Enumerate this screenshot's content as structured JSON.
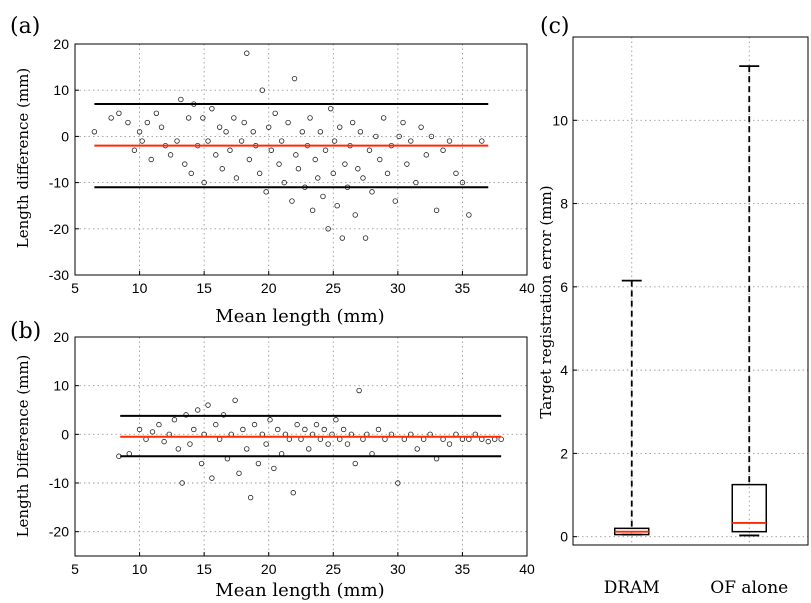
{
  "panels": {
    "a": {
      "label": "(a)"
    },
    "b": {
      "label": "(b)"
    },
    "c": {
      "label": "(c)"
    }
  },
  "chart_data": [
    {
      "id": "a",
      "type": "scatter",
      "xlabel": "Mean length (mm)",
      "ylabel": "Length difference (mm)",
      "xlim": [
        5,
        40
      ],
      "ylim": [
        -30,
        20
      ],
      "xticks": [
        5,
        10,
        15,
        20,
        25,
        30,
        35,
        40
      ],
      "yticks": [
        -30,
        -20,
        -10,
        0,
        10,
        20
      ],
      "grid": true,
      "colors": {
        "mean_line": "#ff2a00",
        "limit_lines": "#000000",
        "points": "#222222"
      },
      "mean_line": {
        "y": -2,
        "x_range": [
          6.5,
          37
        ]
      },
      "limit_lines": [
        {
          "y": 7,
          "x_range": [
            6.5,
            37
          ]
        },
        {
          "y": -11,
          "x_range": [
            6.5,
            37
          ]
        }
      ],
      "points": [
        [
          6.5,
          1
        ],
        [
          7.8,
          4
        ],
        [
          8.4,
          5
        ],
        [
          9.1,
          3
        ],
        [
          9.6,
          -3
        ],
        [
          10.0,
          1
        ],
        [
          10.2,
          -1
        ],
        [
          10.6,
          3
        ],
        [
          10.9,
          -5
        ],
        [
          11.3,
          5
        ],
        [
          11.7,
          2
        ],
        [
          12.0,
          -2
        ],
        [
          12.4,
          -4
        ],
        [
          12.9,
          -1
        ],
        [
          13.2,
          8
        ],
        [
          13.5,
          -6
        ],
        [
          13.8,
          4
        ],
        [
          14.0,
          -8
        ],
        [
          14.2,
          7
        ],
        [
          14.5,
          -2
        ],
        [
          14.9,
          4
        ],
        [
          15.0,
          -10
        ],
        [
          15.3,
          -1
        ],
        [
          15.6,
          6
        ],
        [
          15.9,
          -4
        ],
        [
          16.2,
          2
        ],
        [
          16.4,
          -7
        ],
        [
          16.7,
          1
        ],
        [
          17.0,
          -3
        ],
        [
          17.3,
          4
        ],
        [
          17.5,
          -9
        ],
        [
          17.9,
          -1
        ],
        [
          18.1,
          3
        ],
        [
          18.3,
          18
        ],
        [
          18.5,
          -5
        ],
        [
          18.8,
          1
        ],
        [
          19.0,
          -2
        ],
        [
          19.3,
          -8
        ],
        [
          19.5,
          10
        ],
        [
          19.8,
          -12
        ],
        [
          20.0,
          2
        ],
        [
          20.2,
          -3
        ],
        [
          20.5,
          5
        ],
        [
          20.8,
          -6
        ],
        [
          21.0,
          -1
        ],
        [
          21.2,
          -10
        ],
        [
          21.5,
          3
        ],
        [
          21.8,
          -14
        ],
        [
          22.0,
          12.5
        ],
        [
          22.1,
          -4
        ],
        [
          22.3,
          -7
        ],
        [
          22.6,
          1
        ],
        [
          22.8,
          -11
        ],
        [
          23.0,
          -2
        ],
        [
          23.2,
          4
        ],
        [
          23.4,
          -16
        ],
        [
          23.6,
          -5
        ],
        [
          23.8,
          -9
        ],
        [
          24.0,
          1
        ],
        [
          24.2,
          -13
        ],
        [
          24.4,
          -3
        ],
        [
          24.6,
          -20
        ],
        [
          24.8,
          6
        ],
        [
          25.0,
          -8
        ],
        [
          25.1,
          -1
        ],
        [
          25.3,
          -15
        ],
        [
          25.5,
          2
        ],
        [
          25.7,
          -22
        ],
        [
          25.9,
          -6
        ],
        [
          26.1,
          -11
        ],
        [
          26.3,
          -2
        ],
        [
          26.5,
          3
        ],
        [
          26.7,
          -17
        ],
        [
          26.9,
          -7
        ],
        [
          27.1,
          1
        ],
        [
          27.3,
          -9
        ],
        [
          27.5,
          -22
        ],
        [
          27.8,
          -3
        ],
        [
          28.0,
          -12
        ],
        [
          28.3,
          0
        ],
        [
          28.6,
          -5
        ],
        [
          28.9,
          4
        ],
        [
          29.2,
          -8
        ],
        [
          29.5,
          -2
        ],
        [
          29.8,
          -14
        ],
        [
          30.1,
          0
        ],
        [
          30.4,
          3
        ],
        [
          30.7,
          -6
        ],
        [
          31.0,
          -1
        ],
        [
          31.4,
          -10
        ],
        [
          31.8,
          2
        ],
        [
          32.2,
          -4
        ],
        [
          32.6,
          0
        ],
        [
          33.0,
          -16
        ],
        [
          33.5,
          -3
        ],
        [
          34.0,
          -1
        ],
        [
          34.5,
          -8
        ],
        [
          35.0,
          -10
        ],
        [
          35.5,
          -17
        ],
        [
          36.5,
          -1
        ]
      ]
    },
    {
      "id": "b",
      "type": "scatter",
      "xlabel": "Mean length (mm)",
      "ylabel": "Length Difference (mm)",
      "xlim": [
        5,
        40
      ],
      "ylim": [
        -25,
        20
      ],
      "xticks": [
        5,
        10,
        15,
        20,
        25,
        30,
        35,
        40
      ],
      "yticks": [
        -20,
        -10,
        0,
        10,
        20
      ],
      "grid": true,
      "colors": {
        "mean_line": "#ff2a00",
        "limit_lines": "#000000",
        "points": "#222222"
      },
      "mean_line": {
        "y": -0.5,
        "x_range": [
          8.5,
          38
        ]
      },
      "limit_lines": [
        {
          "y": 3.8,
          "x_range": [
            8.5,
            38
          ]
        },
        {
          "y": -4.5,
          "x_range": [
            8.5,
            38
          ]
        }
      ],
      "points": [
        [
          8.4,
          -4.5
        ],
        [
          9.2,
          -4
        ],
        [
          10.0,
          1
        ],
        [
          10.5,
          -1
        ],
        [
          11.0,
          0.5
        ],
        [
          11.5,
          2
        ],
        [
          11.9,
          -1.5
        ],
        [
          12.3,
          0
        ],
        [
          12.7,
          3
        ],
        [
          13.0,
          -3
        ],
        [
          13.3,
          -10
        ],
        [
          13.6,
          4
        ],
        [
          13.9,
          -2
        ],
        [
          14.2,
          1
        ],
        [
          14.5,
          5
        ],
        [
          14.8,
          -6
        ],
        [
          15.0,
          0
        ],
        [
          15.3,
          6
        ],
        [
          15.6,
          -9
        ],
        [
          15.9,
          2
        ],
        [
          16.2,
          -1
        ],
        [
          16.5,
          4
        ],
        [
          16.8,
          -5
        ],
        [
          17.1,
          0
        ],
        [
          17.4,
          7
        ],
        [
          17.7,
          -8
        ],
        [
          18.0,
          1
        ],
        [
          18.3,
          -3
        ],
        [
          18.6,
          -13
        ],
        [
          18.9,
          2
        ],
        [
          19.2,
          -6
        ],
        [
          19.5,
          0
        ],
        [
          19.8,
          -2
        ],
        [
          20.1,
          3
        ],
        [
          20.4,
          -7
        ],
        [
          20.7,
          1
        ],
        [
          21.0,
          -4
        ],
        [
          21.3,
          0
        ],
        [
          21.6,
          -1
        ],
        [
          21.9,
          -12
        ],
        [
          22.2,
          2
        ],
        [
          22.5,
          -1
        ],
        [
          22.8,
          1
        ],
        [
          23.1,
          -3
        ],
        [
          23.4,
          0
        ],
        [
          23.7,
          2
        ],
        [
          24.0,
          -1
        ],
        [
          24.3,
          1
        ],
        [
          24.6,
          -2
        ],
        [
          24.9,
          0
        ],
        [
          25.2,
          3
        ],
        [
          25.5,
          -1
        ],
        [
          25.8,
          1
        ],
        [
          26.1,
          -2
        ],
        [
          26.4,
          0
        ],
        [
          26.7,
          -6
        ],
        [
          27.0,
          9
        ],
        [
          27.3,
          -1
        ],
        [
          27.6,
          0
        ],
        [
          28.0,
          -4
        ],
        [
          28.5,
          1
        ],
        [
          29.0,
          -1
        ],
        [
          29.5,
          0
        ],
        [
          30.0,
          -10
        ],
        [
          30.5,
          -1
        ],
        [
          31.0,
          0
        ],
        [
          31.5,
          -3
        ],
        [
          32.0,
          -1
        ],
        [
          32.5,
          0
        ],
        [
          33.0,
          -5
        ],
        [
          33.5,
          -1
        ],
        [
          34.0,
          -2
        ],
        [
          34.5,
          0
        ],
        [
          35.0,
          -1
        ],
        [
          35.5,
          -1
        ],
        [
          36.0,
          0
        ],
        [
          36.5,
          -1
        ],
        [
          37.0,
          -1.5
        ],
        [
          37.5,
          -1
        ],
        [
          38.0,
          -1
        ]
      ]
    },
    {
      "id": "c",
      "type": "box",
      "ylabel": "Target registration error (mm)",
      "categories": [
        "DRAM",
        "OF alone"
      ],
      "ylim": [
        -0.2,
        12
      ],
      "yticks": [
        0,
        2,
        4,
        6,
        8,
        10
      ],
      "grid": true,
      "colors": {
        "median": "#ff2a00",
        "box": "#000000",
        "whisker": "#000000"
      },
      "boxes": [
        {
          "min": 0.05,
          "q1": 0.05,
          "median": 0.12,
          "q3": 0.2,
          "max": 6.15
        },
        {
          "min": 0.03,
          "q1": 0.12,
          "median": 0.33,
          "q3": 1.25,
          "max": 11.3
        }
      ]
    }
  ]
}
